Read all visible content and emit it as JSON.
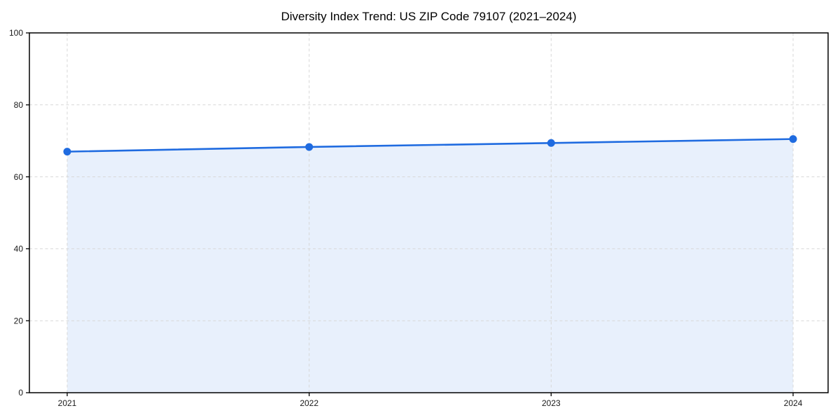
{
  "figure": {
    "background": "#ffffff"
  },
  "chart_data": {
    "type": "line",
    "title": "Diversity Index Trend: US ZIP Code 79107 (2021–2024)",
    "x": [
      "2021",
      "2022",
      "2023",
      "2024"
    ],
    "series": [
      {
        "name": "Diversity Index",
        "values": [
          67.0,
          68.3,
          69.4,
          70.5
        ]
      }
    ],
    "markers": true,
    "area_fill": true,
    "xlabel": "",
    "ylabel": "",
    "ylim": [
      0,
      100
    ],
    "yticks": [
      0,
      20,
      40,
      60,
      80,
      100
    ],
    "grid": true,
    "grid_style": "dashed",
    "legend": false,
    "colors": {
      "line": "#1f6be0",
      "marker": "#1f6be0",
      "fill": "rgba(31,107,224,0.10)",
      "grid": "#d7d7d7",
      "axis": "#000000",
      "tick_text": "#1a1a1a",
      "title_text": "#000000"
    }
  }
}
